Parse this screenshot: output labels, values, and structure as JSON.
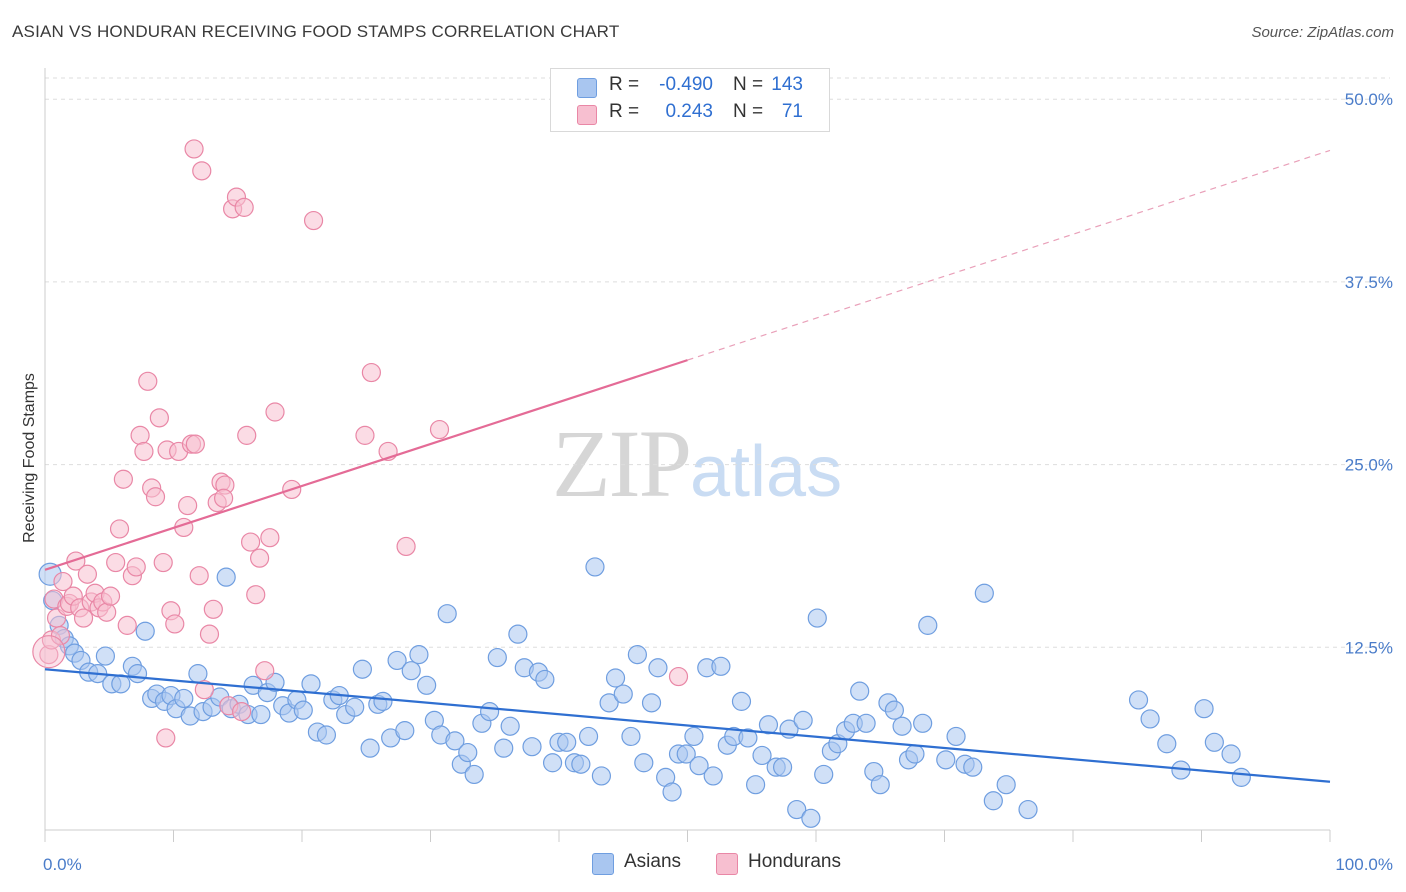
{
  "header": {
    "title": "ASIAN VS HONDURAN RECEIVING FOOD STAMPS CORRELATION CHART",
    "source": "Source: ZipAtlas.com"
  },
  "watermark": {
    "zip": "ZIP",
    "atlas": "atlas"
  },
  "legend_top": [
    {
      "r_label": "R =",
      "r_value": "-0.490",
      "n_label": "N =",
      "n_value": "143",
      "color": "#a9c6f0",
      "border": "#6f9ee0"
    },
    {
      "r_label": "R =",
      "r_value": "0.243",
      "n_label": "N =",
      "n_value": "71",
      "color": "#f7bfd0",
      "border": "#e987a6"
    }
  ],
  "legend_bottom": [
    {
      "label": "Asians",
      "color": "#a9c6f0",
      "border": "#6f9ee0"
    },
    {
      "label": "Hondurans",
      "color": "#f7bfd0",
      "border": "#e987a6"
    }
  ],
  "chart_data": {
    "type": "scatter",
    "title": "ASIAN VS HONDURAN RECEIVING FOOD STAMPS CORRELATION CHART",
    "xlabel": "",
    "ylabel": "Receiving Food Stamps",
    "xlim": [
      0,
      100
    ],
    "ylim": [
      0,
      52
    ],
    "x_tick_labels": [
      "0.0%",
      "100.0%"
    ],
    "y_ticks": [
      12.5,
      25.0,
      37.5,
      50.0
    ],
    "y_tick_labels": [
      "12.5%",
      "25.0%",
      "37.5%",
      "50.0%"
    ],
    "grid": true,
    "legend_position": "top-center",
    "series": [
      {
        "name": "Asians",
        "color": "#6f9ee0",
        "fill": "#a9c6f0",
        "trend": {
          "x": [
            0,
            100
          ],
          "y": [
            11.0,
            3.3
          ],
          "dashed_from": null
        },
        "points": [
          [
            0.4,
            17.5
          ],
          [
            0.6,
            15.7
          ],
          [
            1.1,
            14.0
          ],
          [
            1.5,
            13.1
          ],
          [
            1.9,
            12.6
          ],
          [
            2.3,
            12.1
          ],
          [
            2.8,
            11.6
          ],
          [
            3.4,
            10.8
          ],
          [
            4.1,
            10.7
          ],
          [
            4.7,
            11.9
          ],
          [
            5.2,
            10.0
          ],
          [
            5.9,
            10.0
          ],
          [
            6.8,
            11.2
          ],
          [
            7.2,
            10.7
          ],
          [
            7.8,
            13.6
          ],
          [
            8.3,
            9.0
          ],
          [
            8.7,
            9.3
          ],
          [
            9.3,
            8.8
          ],
          [
            9.8,
            9.2
          ],
          [
            10.2,
            8.3
          ],
          [
            10.8,
            9.0
          ],
          [
            11.3,
            7.8
          ],
          [
            11.9,
            10.7
          ],
          [
            12.3,
            8.1
          ],
          [
            13.0,
            8.4
          ],
          [
            13.6,
            9.1
          ],
          [
            14.1,
            17.3
          ],
          [
            14.5,
            8.3
          ],
          [
            15.1,
            8.6
          ],
          [
            15.8,
            7.9
          ],
          [
            16.2,
            9.9
          ],
          [
            16.8,
            7.9
          ],
          [
            17.3,
            9.4
          ],
          [
            17.9,
            10.1
          ],
          [
            18.5,
            8.5
          ],
          [
            19.0,
            8.0
          ],
          [
            19.6,
            8.9
          ],
          [
            20.1,
            8.2
          ],
          [
            20.7,
            10.0
          ],
          [
            21.2,
            6.7
          ],
          [
            21.9,
            6.5
          ],
          [
            22.4,
            8.9
          ],
          [
            22.9,
            9.2
          ],
          [
            23.4,
            7.9
          ],
          [
            24.1,
            8.4
          ],
          [
            24.7,
            11.0
          ],
          [
            25.3,
            5.6
          ],
          [
            25.9,
            8.6
          ],
          [
            26.3,
            8.8
          ],
          [
            26.9,
            6.3
          ],
          [
            27.4,
            11.6
          ],
          [
            28.0,
            6.8
          ],
          [
            28.5,
            10.9
          ],
          [
            29.1,
            12.0
          ],
          [
            29.7,
            9.9
          ],
          [
            30.3,
            7.5
          ],
          [
            30.8,
            6.5
          ],
          [
            31.3,
            14.8
          ],
          [
            31.9,
            6.1
          ],
          [
            32.4,
            4.5
          ],
          [
            32.9,
            5.3
          ],
          [
            33.4,
            3.8
          ],
          [
            34.0,
            7.3
          ],
          [
            34.6,
            8.1
          ],
          [
            35.2,
            11.8
          ],
          [
            35.7,
            5.6
          ],
          [
            36.2,
            7.1
          ],
          [
            36.8,
            13.4
          ],
          [
            37.3,
            11.1
          ],
          [
            37.9,
            5.7
          ],
          [
            38.4,
            10.8
          ],
          [
            38.9,
            10.3
          ],
          [
            39.5,
            4.6
          ],
          [
            40.0,
            6.0
          ],
          [
            40.6,
            6.0
          ],
          [
            41.2,
            4.6
          ],
          [
            41.7,
            4.5
          ],
          [
            42.3,
            6.4
          ],
          [
            42.8,
            18.0
          ],
          [
            43.3,
            3.7
          ],
          [
            43.9,
            8.7
          ],
          [
            44.4,
            10.4
          ],
          [
            45.0,
            9.3
          ],
          [
            45.6,
            6.4
          ],
          [
            46.1,
            12.0
          ],
          [
            46.6,
            4.6
          ],
          [
            47.2,
            8.7
          ],
          [
            47.7,
            11.1
          ],
          [
            48.3,
            3.6
          ],
          [
            48.8,
            2.6
          ],
          [
            49.3,
            5.2
          ],
          [
            49.9,
            5.2
          ],
          [
            50.5,
            6.4
          ],
          [
            50.9,
            4.4
          ],
          [
            51.5,
            11.1
          ],
          [
            52.0,
            3.7
          ],
          [
            52.6,
            11.2
          ],
          [
            53.1,
            5.8
          ],
          [
            53.6,
            6.4
          ],
          [
            54.2,
            8.8
          ],
          [
            54.7,
            6.3
          ],
          [
            55.3,
            3.1
          ],
          [
            55.8,
            5.1
          ],
          [
            56.3,
            7.2
          ],
          [
            56.9,
            4.3
          ],
          [
            57.4,
            4.3
          ],
          [
            57.9,
            6.9
          ],
          [
            58.5,
            1.4
          ],
          [
            59.0,
            7.5
          ],
          [
            59.6,
            0.8
          ],
          [
            60.1,
            14.5
          ],
          [
            60.6,
            3.8
          ],
          [
            61.2,
            5.4
          ],
          [
            61.7,
            5.9
          ],
          [
            62.3,
            6.8
          ],
          [
            62.9,
            7.3
          ],
          [
            63.4,
            9.5
          ],
          [
            63.9,
            7.3
          ],
          [
            64.5,
            4.0
          ],
          [
            65.0,
            3.1
          ],
          [
            65.6,
            8.7
          ],
          [
            66.1,
            8.2
          ],
          [
            66.7,
            7.1
          ],
          [
            67.2,
            4.8
          ],
          [
            67.7,
            5.2
          ],
          [
            68.3,
            7.3
          ],
          [
            68.7,
            14.0
          ],
          [
            70.1,
            4.8
          ],
          [
            70.9,
            6.4
          ],
          [
            71.6,
            4.5
          ],
          [
            72.2,
            4.3
          ],
          [
            73.1,
            16.2
          ],
          [
            73.8,
            2.0
          ],
          [
            74.8,
            3.1
          ],
          [
            76.5,
            1.4
          ],
          [
            85.1,
            8.9
          ],
          [
            86.0,
            7.6
          ],
          [
            87.3,
            5.9
          ],
          [
            88.4,
            4.1
          ],
          [
            90.2,
            8.3
          ],
          [
            91.0,
            6.0
          ],
          [
            92.3,
            5.2
          ],
          [
            93.1,
            3.6
          ]
        ]
      },
      {
        "name": "Hondurans",
        "color": "#e987a6",
        "fill": "#f7bfd0",
        "trend": {
          "x": [
            0,
            100
          ],
          "y": [
            17.8,
            46.5
          ],
          "solid_until_x": 50
        },
        "points": [
          [
            0.3,
            12.0
          ],
          [
            0.5,
            13.0
          ],
          [
            0.7,
            15.8
          ],
          [
            0.9,
            14.5
          ],
          [
            1.2,
            13.3
          ],
          [
            1.4,
            17.0
          ],
          [
            1.7,
            15.3
          ],
          [
            1.9,
            15.5
          ],
          [
            2.2,
            16.0
          ],
          [
            2.4,
            18.4
          ],
          [
            2.7,
            15.2
          ],
          [
            3.0,
            14.5
          ],
          [
            3.3,
            17.5
          ],
          [
            3.6,
            15.6
          ],
          [
            3.9,
            16.2
          ],
          [
            4.2,
            15.2
          ],
          [
            4.5,
            15.6
          ],
          [
            4.8,
            14.9
          ],
          [
            5.1,
            16.0
          ],
          [
            5.5,
            18.3
          ],
          [
            5.8,
            20.6
          ],
          [
            6.1,
            24.0
          ],
          [
            6.4,
            14.0
          ],
          [
            6.8,
            17.4
          ],
          [
            7.1,
            18.0
          ],
          [
            7.4,
            27.0
          ],
          [
            7.7,
            25.9
          ],
          [
            8.0,
            30.7
          ],
          [
            8.3,
            23.4
          ],
          [
            8.6,
            22.8
          ],
          [
            8.9,
            28.2
          ],
          [
            9.2,
            18.3
          ],
          [
            9.5,
            26.0
          ],
          [
            9.8,
            15.0
          ],
          [
            10.1,
            14.1
          ],
          [
            10.4,
            25.9
          ],
          [
            10.8,
            20.7
          ],
          [
            11.1,
            22.2
          ],
          [
            11.4,
            26.4
          ],
          [
            11.7,
            26.4
          ],
          [
            12.0,
            17.4
          ],
          [
            12.4,
            9.6
          ],
          [
            12.8,
            13.4
          ],
          [
            13.1,
            15.1
          ],
          [
            13.4,
            22.4
          ],
          [
            13.7,
            23.8
          ],
          [
            14.0,
            23.6
          ],
          [
            14.3,
            8.5
          ],
          [
            14.6,
            42.5
          ],
          [
            14.9,
            43.3
          ],
          [
            15.3,
            8.1
          ],
          [
            15.7,
            27.0
          ],
          [
            16.0,
            19.7
          ],
          [
            16.4,
            16.1
          ],
          [
            16.7,
            18.6
          ],
          [
            17.1,
            10.9
          ],
          [
            17.5,
            20.0
          ],
          [
            17.9,
            28.6
          ],
          [
            19.2,
            23.3
          ],
          [
            20.9,
            41.7
          ],
          [
            24.9,
            27.0
          ],
          [
            25.4,
            31.3
          ],
          [
            26.7,
            25.9
          ],
          [
            28.1,
            19.4
          ],
          [
            30.7,
            27.4
          ],
          [
            9.4,
            6.3
          ],
          [
            11.6,
            46.6
          ],
          [
            12.2,
            45.1
          ],
          [
            13.9,
            22.7
          ],
          [
            15.5,
            42.6
          ],
          [
            49.3,
            10.5
          ]
        ]
      }
    ]
  }
}
